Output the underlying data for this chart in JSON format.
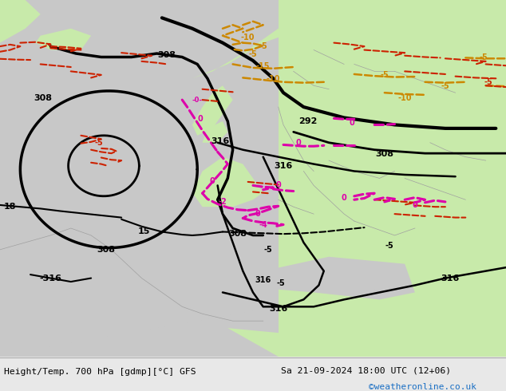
{
  "title_left": "Height/Temp. 700 hPa [gdmp][°C] GFS",
  "title_right": "Sa 21-09-2024 18:00 UTC (12+06)",
  "watermark": "©weatheronline.co.uk",
  "footer_bg": "#e8e8e8",
  "sea_color": "#c8c8c8",
  "land_green": "#c8eaaa",
  "land_grey": "#c8c8c8",
  "text_color": "#000000",
  "watermark_color": "#1a6fc4",
  "black": "#000000",
  "orange": "#cc8800",
  "red": "#cc2200",
  "magenta": "#dd00aa"
}
